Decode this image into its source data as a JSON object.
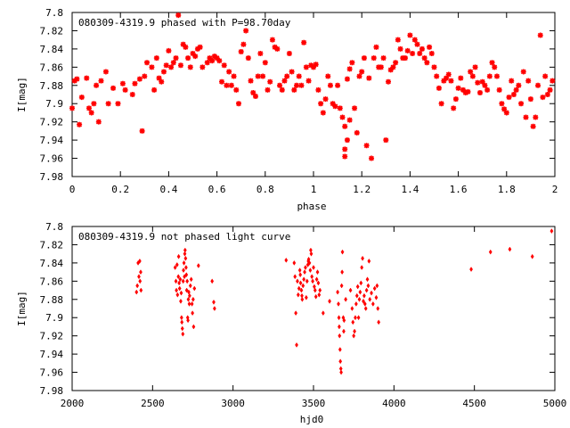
{
  "chart_data": [
    {
      "type": "scatter",
      "title": "080309-4319.9 phased with P=98.70day",
      "xlabel": "phase",
      "ylabel": "I[mag]",
      "xlim": [
        0,
        2
      ],
      "ylim": [
        7.98,
        7.8
      ],
      "y_reversed": true,
      "grid": false,
      "legend": "none",
      "marker": "star",
      "color": "#ff0000",
      "x_ticks": [
        "0",
        "0.2",
        "0.4",
        "0.6",
        "0.8",
        "1",
        "1.2",
        "1.4",
        "1.6",
        "1.8",
        "2"
      ],
      "y_ticks": [
        "7.8",
        "7.82",
        "7.84",
        "7.86",
        "7.88",
        "7.9",
        "7.92",
        "7.94",
        "7.96",
        "7.98"
      ],
      "points": [
        [
          0.0,
          7.905
        ],
        [
          0.01,
          7.875
        ],
        [
          0.02,
          7.873
        ],
        [
          0.03,
          7.923
        ],
        [
          0.04,
          7.893
        ],
        [
          0.06,
          7.872
        ],
        [
          0.07,
          7.905
        ],
        [
          0.08,
          7.91
        ],
        [
          0.09,
          7.9
        ],
        [
          0.1,
          7.88
        ],
        [
          0.11,
          7.92
        ],
        [
          0.12,
          7.875
        ],
        [
          0.14,
          7.865
        ],
        [
          0.15,
          7.9
        ],
        [
          0.17,
          7.883
        ],
        [
          0.19,
          7.9
        ],
        [
          0.21,
          7.878
        ],
        [
          0.22,
          7.885
        ],
        [
          0.25,
          7.89
        ],
        [
          0.26,
          7.878
        ],
        [
          0.28,
          7.873
        ],
        [
          0.3,
          7.87
        ],
        [
          0.29,
          7.93
        ],
        [
          0.31,
          7.855
        ],
        [
          0.33,
          7.86
        ],
        [
          0.34,
          7.885
        ],
        [
          0.35,
          7.85
        ],
        [
          0.36,
          7.872
        ],
        [
          0.37,
          7.876
        ],
        [
          0.38,
          7.865
        ],
        [
          0.39,
          7.858
        ],
        [
          0.4,
          7.842
        ],
        [
          0.41,
          7.86
        ],
        [
          0.42,
          7.855
        ],
        [
          0.43,
          7.85
        ],
        [
          0.44,
          7.803
        ],
        [
          0.45,
          7.858
        ],
        [
          0.46,
          7.835
        ],
        [
          0.47,
          7.838
        ],
        [
          0.48,
          7.85
        ],
        [
          0.49,
          7.86
        ],
        [
          0.5,
          7.845
        ],
        [
          0.51,
          7.848
        ],
        [
          0.52,
          7.84
        ],
        [
          0.53,
          7.838
        ],
        [
          0.54,
          7.86
        ],
        [
          0.56,
          7.855
        ],
        [
          0.57,
          7.85
        ],
        [
          0.58,
          7.853
        ],
        [
          0.59,
          7.848
        ],
        [
          0.6,
          7.85
        ],
        [
          0.61,
          7.853
        ],
        [
          0.62,
          7.876
        ],
        [
          0.63,
          7.858
        ],
        [
          0.64,
          7.88
        ],
        [
          0.65,
          7.865
        ],
        [
          0.66,
          7.88
        ],
        [
          0.67,
          7.87
        ],
        [
          0.68,
          7.885
        ],
        [
          0.69,
          7.9
        ],
        [
          0.7,
          7.843
        ],
        [
          0.71,
          7.835
        ],
        [
          0.72,
          7.82
        ],
        [
          0.73,
          7.85
        ],
        [
          0.74,
          7.875
        ],
        [
          0.75,
          7.888
        ],
        [
          0.76,
          7.892
        ],
        [
          0.77,
          7.87
        ],
        [
          0.78,
          7.845
        ],
        [
          0.79,
          7.87
        ],
        [
          0.8,
          7.855
        ],
        [
          0.81,
          7.885
        ],
        [
          0.82,
          7.876
        ],
        [
          0.83,
          7.83
        ],
        [
          0.84,
          7.838
        ],
        [
          0.85,
          7.84
        ],
        [
          0.86,
          7.88
        ],
        [
          0.87,
          7.885
        ],
        [
          0.88,
          7.875
        ],
        [
          0.89,
          7.87
        ],
        [
          0.9,
          7.845
        ],
        [
          0.91,
          7.865
        ],
        [
          0.92,
          7.885
        ],
        [
          0.93,
          7.88
        ],
        [
          0.94,
          7.87
        ],
        [
          0.95,
          7.88
        ],
        [
          0.96,
          7.833
        ],
        [
          0.97,
          7.86
        ],
        [
          0.98,
          7.875
        ],
        [
          0.99,
          7.858
        ],
        [
          1.0,
          7.86
        ],
        [
          1.01,
          7.857
        ],
        [
          1.02,
          7.885
        ],
        [
          1.03,
          7.9
        ],
        [
          1.04,
          7.91
        ],
        [
          1.05,
          7.895
        ],
        [
          1.06,
          7.87
        ],
        [
          1.07,
          7.88
        ],
        [
          1.08,
          7.9
        ],
        [
          1.09,
          7.903
        ],
        [
          1.1,
          7.88
        ],
        [
          1.11,
          7.905
        ],
        [
          1.12,
          7.915
        ],
        [
          1.13,
          7.925
        ],
        [
          1.14,
          7.94
        ],
        [
          1.15,
          7.918
        ],
        [
          1.13,
          7.958
        ],
        [
          1.13,
          7.95
        ],
        [
          1.14,
          7.873
        ],
        [
          1.15,
          7.862
        ],
        [
          1.16,
          7.855
        ],
        [
          1.17,
          7.905
        ],
        [
          1.18,
          7.932
        ],
        [
          1.19,
          7.87
        ],
        [
          1.2,
          7.865
        ],
        [
          1.21,
          7.85
        ],
        [
          1.22,
          7.946
        ],
        [
          1.23,
          7.872
        ],
        [
          1.24,
          7.96
        ],
        [
          1.25,
          7.85
        ],
        [
          1.26,
          7.838
        ],
        [
          1.27,
          7.86
        ],
        [
          1.28,
          7.86
        ],
        [
          1.29,
          7.85
        ],
        [
          1.3,
          7.94
        ],
        [
          1.31,
          7.876
        ],
        [
          1.32,
          7.863
        ],
        [
          1.33,
          7.86
        ],
        [
          1.34,
          7.855
        ],
        [
          1.35,
          7.83
        ],
        [
          1.36,
          7.84
        ],
        [
          1.37,
          7.85
        ],
        [
          1.38,
          7.85
        ],
        [
          1.39,
          7.842
        ],
        [
          1.4,
          7.825
        ],
        [
          1.41,
          7.845
        ],
        [
          1.42,
          7.83
        ],
        [
          1.43,
          7.835
        ],
        [
          1.44,
          7.845
        ],
        [
          1.45,
          7.84
        ],
        [
          1.46,
          7.85
        ],
        [
          1.47,
          7.855
        ],
        [
          1.48,
          7.838
        ],
        [
          1.49,
          7.845
        ],
        [
          1.5,
          7.86
        ],
        [
          1.51,
          7.87
        ],
        [
          1.52,
          7.883
        ],
        [
          1.53,
          7.9
        ],
        [
          1.54,
          7.875
        ],
        [
          1.55,
          7.872
        ],
        [
          1.56,
          7.868
        ],
        [
          1.57,
          7.875
        ],
        [
          1.58,
          7.905
        ],
        [
          1.59,
          7.895
        ],
        [
          1.6,
          7.883
        ],
        [
          1.61,
          7.872
        ],
        [
          1.62,
          7.885
        ],
        [
          1.63,
          7.888
        ],
        [
          1.64,
          7.887
        ],
        [
          1.65,
          7.865
        ],
        [
          1.66,
          7.87
        ],
        [
          1.67,
          7.86
        ],
        [
          1.68,
          7.877
        ],
        [
          1.69,
          7.888
        ],
        [
          1.7,
          7.876
        ],
        [
          1.71,
          7.88
        ],
        [
          1.72,
          7.885
        ],
        [
          1.73,
          7.87
        ],
        [
          1.74,
          7.855
        ],
        [
          1.75,
          7.86
        ],
        [
          1.76,
          7.87
        ],
        [
          1.77,
          7.885
        ],
        [
          1.78,
          7.9
        ],
        [
          1.79,
          7.906
        ],
        [
          1.8,
          7.91
        ],
        [
          1.81,
          7.893
        ],
        [
          1.82,
          7.875
        ],
        [
          1.83,
          7.89
        ],
        [
          1.84,
          7.885
        ],
        [
          1.85,
          7.88
        ],
        [
          1.86,
          7.9
        ],
        [
          1.87,
          7.865
        ],
        [
          1.88,
          7.915
        ],
        [
          1.89,
          7.875
        ],
        [
          1.9,
          7.895
        ],
        [
          1.91,
          7.925
        ],
        [
          1.92,
          7.915
        ],
        [
          1.93,
          7.88
        ],
        [
          1.94,
          7.825
        ],
        [
          1.95,
          7.893
        ],
        [
          1.96,
          7.87
        ],
        [
          1.97,
          7.89
        ],
        [
          1.98,
          7.885
        ],
        [
          1.99,
          7.875
        ]
      ]
    },
    {
      "type": "scatter",
      "title": "080309-4319.9 not phased light curve",
      "xlabel": "hjd0",
      "ylabel": "I[mag]",
      "xlim": [
        2000,
        5000
      ],
      "ylim": [
        7.98,
        7.8
      ],
      "y_reversed": true,
      "grid": false,
      "legend": "none",
      "marker": "diamond",
      "color": "#ff0000",
      "x_ticks": [
        "2000",
        "2500",
        "3000",
        "3500",
        "4000",
        "4500",
        "5000"
      ],
      "y_ticks": [
        "7.8",
        "7.82",
        "7.84",
        "7.86",
        "7.88",
        "7.9",
        "7.92",
        "7.94",
        "7.96",
        "7.98"
      ],
      "points": [
        [
          2400,
          7.872
        ],
        [
          2405,
          7.865
        ],
        [
          2410,
          7.84
        ],
        [
          2415,
          7.855
        ],
        [
          2420,
          7.838
        ],
        [
          2422,
          7.86
        ],
        [
          2426,
          7.85
        ],
        [
          2428,
          7.87
        ],
        [
          2640,
          7.845
        ],
        [
          2645,
          7.86
        ],
        [
          2648,
          7.87
        ],
        [
          2652,
          7.842
        ],
        [
          2655,
          7.875
        ],
        [
          2660,
          7.855
        ],
        [
          2662,
          7.833
        ],
        [
          2665,
          7.862
        ],
        [
          2668,
          7.868
        ],
        [
          2672,
          7.858
        ],
        [
          2675,
          7.882
        ],
        [
          2678,
          7.873
        ],
        [
          2680,
          7.9
        ],
        [
          2682,
          7.905
        ],
        [
          2685,
          7.912
        ],
        [
          2688,
          7.918
        ],
        [
          2690,
          7.86
        ],
        [
          2692,
          7.848
        ],
        [
          2695,
          7.84
        ],
        [
          2698,
          7.855
        ],
        [
          2700,
          7.83
        ],
        [
          2702,
          7.826
        ],
        [
          2705,
          7.835
        ],
        [
          2708,
          7.845
        ],
        [
          2710,
          7.853
        ],
        [
          2712,
          7.87
        ],
        [
          2715,
          7.86
        ],
        [
          2718,
          7.9
        ],
        [
          2720,
          7.903
        ],
        [
          2722,
          7.88
        ],
        [
          2725,
          7.872
        ],
        [
          2728,
          7.885
        ],
        [
          2730,
          7.876
        ],
        [
          2735,
          7.865
        ],
        [
          2740,
          7.858
        ],
        [
          2745,
          7.885
        ],
        [
          2748,
          7.895
        ],
        [
          2752,
          7.88
        ],
        [
          2755,
          7.91
        ],
        [
          2760,
          7.868
        ],
        [
          2785,
          7.843
        ],
        [
          2870,
          7.86
        ],
        [
          2880,
          7.883
        ],
        [
          2885,
          7.89
        ],
        [
          3330,
          7.837
        ],
        [
          3380,
          7.84
        ],
        [
          3385,
          7.855
        ],
        [
          3390,
          7.895
        ],
        [
          3395,
          7.93
        ],
        [
          3400,
          7.86
        ],
        [
          3405,
          7.875
        ],
        [
          3410,
          7.868
        ],
        [
          3415,
          7.848
        ],
        [
          3418,
          7.853
        ],
        [
          3420,
          7.862
        ],
        [
          3425,
          7.87
        ],
        [
          3428,
          7.876
        ],
        [
          3430,
          7.88
        ],
        [
          3435,
          7.865
        ],
        [
          3440,
          7.858
        ],
        [
          3445,
          7.85
        ],
        [
          3450,
          7.845
        ],
        [
          3455,
          7.878
        ],
        [
          3460,
          7.86
        ],
        [
          3465,
          7.842
        ],
        [
          3468,
          7.838
        ],
        [
          3470,
          7.836
        ],
        [
          3475,
          7.84
        ],
        [
          3480,
          7.848
        ],
        [
          3483,
          7.826
        ],
        [
          3486,
          7.83
        ],
        [
          3490,
          7.855
        ],
        [
          3495,
          7.86
        ],
        [
          3500,
          7.845
        ],
        [
          3505,
          7.866
        ],
        [
          3510,
          7.87
        ],
        [
          3515,
          7.877
        ],
        [
          3520,
          7.858
        ],
        [
          3525,
          7.85
        ],
        [
          3530,
          7.862
        ],
        [
          3535,
          7.875
        ],
        [
          3540,
          7.87
        ],
        [
          3560,
          7.895
        ],
        [
          3600,
          7.882
        ],
        [
          3650,
          7.872
        ],
        [
          3655,
          7.885
        ],
        [
          3658,
          7.9
        ],
        [
          3660,
          7.91
        ],
        [
          3662,
          7.92
        ],
        [
          3665,
          7.935
        ],
        [
          3667,
          7.948
        ],
        [
          3670,
          7.956
        ],
        [
          3672,
          7.96
        ],
        [
          3675,
          7.865
        ],
        [
          3678,
          7.85
        ],
        [
          3680,
          7.828
        ],
        [
          3685,
          7.9
        ],
        [
          3688,
          7.915
        ],
        [
          3690,
          7.903
        ],
        [
          3700,
          7.88
        ],
        [
          3730,
          7.87
        ],
        [
          3740,
          7.89
        ],
        [
          3745,
          7.905
        ],
        [
          3750,
          7.92
        ],
        [
          3755,
          7.915
        ],
        [
          3760,
          7.9
        ],
        [
          3765,
          7.885
        ],
        [
          3770,
          7.876
        ],
        [
          3775,
          7.866
        ],
        [
          3780,
          7.9
        ],
        [
          3785,
          7.88
        ],
        [
          3790,
          7.872
        ],
        [
          3795,
          7.862
        ],
        [
          3800,
          7.845
        ],
        [
          3805,
          7.835
        ],
        [
          3810,
          7.882
        ],
        [
          3815,
          7.876
        ],
        [
          3820,
          7.885
        ],
        [
          3825,
          7.89
        ],
        [
          3830,
          7.87
        ],
        [
          3835,
          7.858
        ],
        [
          3840,
          7.865
        ],
        [
          3845,
          7.838
        ],
        [
          3850,
          7.88
        ],
        [
          3860,
          7.873
        ],
        [
          3870,
          7.885
        ],
        [
          3880,
          7.868
        ],
        [
          3890,
          7.878
        ],
        [
          3895,
          7.865
        ],
        [
          3900,
          7.89
        ],
        [
          3905,
          7.905
        ],
        [
          4480,
          7.847
        ],
        [
          4600,
          7.828
        ],
        [
          4720,
          7.825
        ],
        [
          4860,
          7.833
        ],
        [
          4980,
          7.805
        ]
      ]
    }
  ]
}
